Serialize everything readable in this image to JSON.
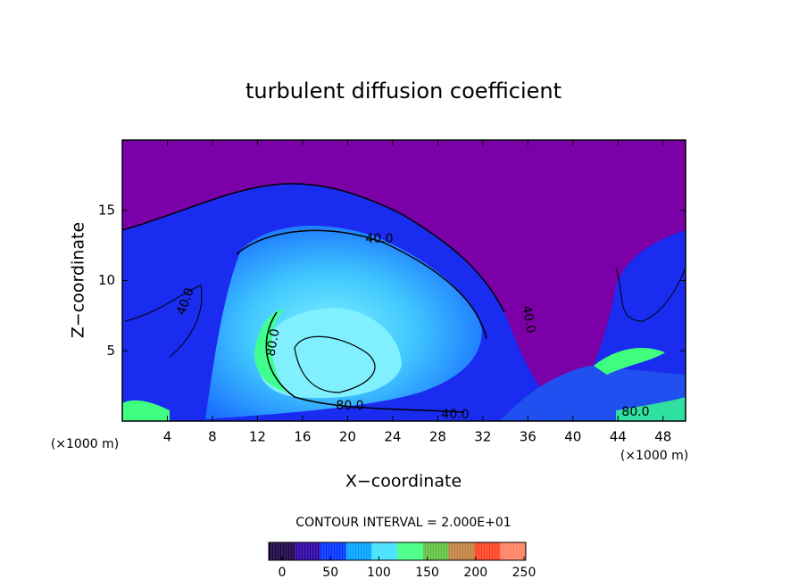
{
  "chart_data": {
    "type": "contour",
    "title": "turbulent diffusion coefficient",
    "x_label": "X−coordinate",
    "y_label": "Z−coordinate",
    "x_unit": "(×1000 m)",
    "y_unit": "(×1000 m)",
    "xlim": [
      0,
      50
    ],
    "xticks": [
      4,
      8,
      12,
      16,
      20,
      24,
      28,
      32,
      36,
      40,
      44,
      48
    ],
    "ylim": [
      0,
      20
    ],
    "yticks": [
      5,
      10,
      15
    ],
    "contour_interval_text": "CONTOUR INTERVAL = 2.000E+01",
    "contour_labels": [
      {
        "value": 40,
        "label": "40.0"
      },
      {
        "value": 40,
        "label": "40.0"
      },
      {
        "value": 80,
        "label": "80.0"
      },
      {
        "value": 80,
        "label": "80.0"
      },
      {
        "value": 40,
        "label": "40.0"
      },
      {
        "value": 40,
        "label": "40.0"
      },
      {
        "value": 80,
        "label": "80.0"
      }
    ],
    "colorbar_lim": [
      0,
      250
    ],
    "colorbar_ticks": [
      0,
      50,
      100,
      150,
      200,
      250
    ],
    "colormap": [
      "#1a0040",
      "#2a00a0",
      "#0030ff",
      "#00a0ff",
      "#40e0ff",
      "#40ff80",
      "#60c040",
      "#c08040",
      "#ff4020",
      "#ff8060"
    ]
  }
}
